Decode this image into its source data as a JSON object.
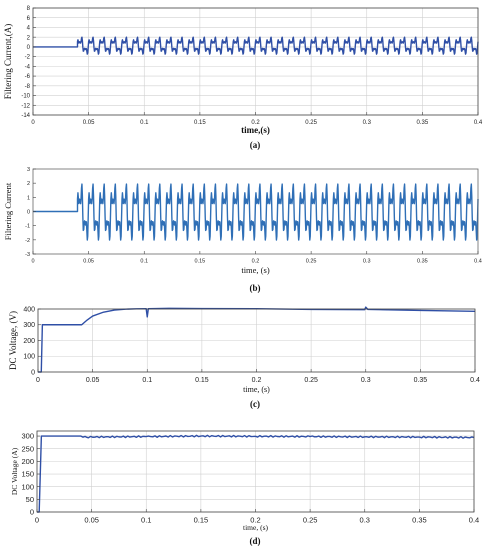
{
  "chart_data": [
    {
      "type": "line",
      "title": "",
      "caption": "(a)",
      "xlabel": "time,(s)",
      "ylabel": "Filtering Current,(A)",
      "xlim": [
        0,
        0.4
      ],
      "ylim": [
        -14,
        8
      ],
      "xticks": [
        0,
        0.05,
        0.1,
        0.15,
        0.2,
        0.25,
        0.3,
        0.35,
        0.4
      ],
      "xtick_labels": [
        "0",
        "0.05",
        "0.1",
        "0.15",
        "0.2",
        "0.25",
        "0.3",
        "0.35",
        "0.4"
      ],
      "yticks": [
        -14,
        -12,
        -10,
        -8,
        -6,
        -4,
        -2,
        0,
        2,
        4,
        6,
        8
      ],
      "ytick_labels": [
        "-14",
        "-12",
        "-10",
        "-8",
        "-6",
        "-4",
        "-2",
        "0",
        "2",
        "4",
        "6",
        "8"
      ],
      "grid": true,
      "line_color": "#2f4fa6",
      "series": [
        {
          "name": "",
          "segments": [
            {
              "x_start": 0,
              "x_end": 0.04,
              "y": 0
            },
            {
              "x_start": 0.04,
              "x_end": 0.4,
              "waveform": "harmonic ripple",
              "y_min": -2,
              "y_max": 2.5,
              "period": 0.01
            }
          ]
        }
      ]
    },
    {
      "type": "line",
      "title": "",
      "caption": "(b)",
      "xlabel": "time, (s)",
      "ylabel": "Filtering Current",
      "xlim": [
        0,
        0.4
      ],
      "ylim": [
        -3,
        3
      ],
      "xticks": [
        0,
        0.05,
        0.1,
        0.15,
        0.2,
        0.25,
        0.3,
        0.35,
        0.4
      ],
      "xtick_labels": [
        "0",
        "0.05",
        "0.1",
        "0.15",
        "0.2",
        "0.25",
        "0.3",
        "0.35",
        "0.4"
      ],
      "yticks": [
        -3,
        -2,
        -1,
        0,
        1,
        2,
        3
      ],
      "ytick_labels": [
        "-3",
        "-2",
        "-1",
        "0",
        "1",
        "2",
        "3"
      ],
      "grid": false,
      "line_color": "#2f6fb6",
      "series": [
        {
          "name": "",
          "segments": [
            {
              "x_start": 0,
              "x_end": 0.04,
              "y": 0
            },
            {
              "x_start": 0.04,
              "x_end": 0.4,
              "waveform": "harmonic ripple",
              "y_min": -2.6,
              "y_max": 2.5,
              "period": 0.01
            }
          ]
        }
      ]
    },
    {
      "type": "line",
      "title": "",
      "caption": "(c)",
      "xlabel": "time, (s)",
      "ylabel": "DC Voltage, (V)",
      "xlim": [
        0,
        0.4
      ],
      "ylim": [
        0,
        400
      ],
      "xticks": [
        0,
        0.05,
        0.1,
        0.15,
        0.2,
        0.25,
        0.3,
        0.35,
        0.4
      ],
      "xtick_labels": [
        "0",
        "0.05",
        "0.1",
        "0.15",
        "0.2",
        "0.25",
        "0.3",
        "0.35",
        "0.4"
      ],
      "yticks": [
        0,
        100,
        200,
        300,
        400
      ],
      "ytick_labels": [
        "0",
        "100",
        "200",
        "300",
        "400"
      ],
      "grid": true,
      "line_color": "#2f4fa6",
      "series": [
        {
          "name": "",
          "points": [
            [
              0,
              0
            ],
            [
              0.003,
              0
            ],
            [
              0.004,
              300
            ],
            [
              0.04,
              300
            ],
            [
              0.045,
              330
            ],
            [
              0.05,
              355
            ],
            [
              0.06,
              380
            ],
            [
              0.07,
              393
            ],
            [
              0.08,
              399
            ],
            [
              0.09,
              401
            ],
            [
              0.099,
              402
            ],
            [
              0.1,
              350
            ],
            [
              0.101,
              402
            ],
            [
              0.12,
              404
            ],
            [
              0.15,
              403
            ],
            [
              0.2,
              402
            ],
            [
              0.25,
              397
            ],
            [
              0.299,
              396
            ],
            [
              0.3,
              412
            ],
            [
              0.302,
              397
            ],
            [
              0.35,
              391
            ],
            [
              0.4,
              385
            ]
          ]
        }
      ]
    },
    {
      "type": "line",
      "title": "",
      "caption": "(d)",
      "xlabel": "time, (s)",
      "ylabel": "DC Voltage (A)",
      "xlim": [
        0,
        0.4
      ],
      "ylim": [
        0,
        320
      ],
      "xticks": [
        0,
        0.05,
        0.1,
        0.15,
        0.2,
        0.25,
        0.3,
        0.35,
        0.4
      ],
      "xtick_labels": [
        "0",
        "0.05",
        "0.1",
        "0.15",
        "0.2",
        "0.25",
        "0.3",
        "0.35",
        "0.4"
      ],
      "yticks": [
        0,
        50,
        100,
        150,
        200,
        250,
        300
      ],
      "ytick_labels": [
        "0",
        "50",
        "100",
        "150",
        "200",
        "250",
        "300"
      ],
      "grid": true,
      "line_color": "#2f4fa6",
      "series": [
        {
          "name": "",
          "points": [
            [
              0,
              0
            ],
            [
              0.002,
              0
            ],
            [
              0.004,
              300
            ],
            [
              0.04,
              300
            ],
            [
              0.045,
              296
            ],
            [
              0.1,
              298
            ],
            [
              0.15,
              300
            ],
            [
              0.2,
              299
            ],
            [
              0.25,
              298
            ],
            [
              0.3,
              297
            ],
            [
              0.35,
              296
            ],
            [
              0.4,
              294
            ]
          ],
          "ripple": 3
        }
      ]
    }
  ]
}
